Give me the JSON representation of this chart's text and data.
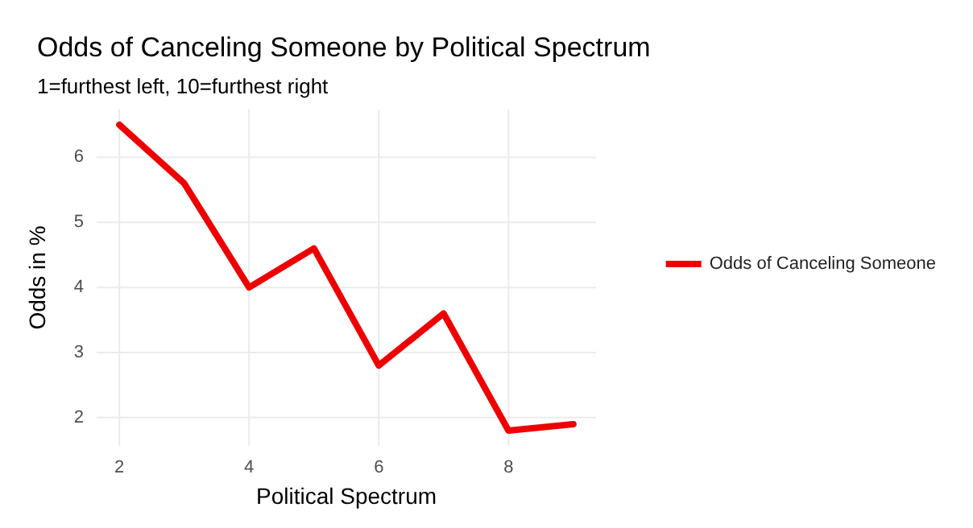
{
  "chart_data": {
    "type": "line",
    "title": "Odds of Canceling Someone by Political Spectrum",
    "subtitle": "1=furthest left, 10=furthest right",
    "xlabel": "Political Spectrum",
    "ylabel": "Odds in %",
    "x": [
      2,
      3,
      4,
      5,
      6,
      7,
      8,
      9
    ],
    "series": [
      {
        "name": "Odds of Canceling Someone",
        "color": "#ee0000",
        "values": [
          6.5,
          5.6,
          4.0,
          4.6,
          2.8,
          3.6,
          1.8,
          1.9
        ]
      }
    ],
    "xlim": [
      1.65,
      9.35
    ],
    "xticks": [
      2,
      4,
      6,
      8
    ],
    "ylim": [
      1.565,
      6.735
    ],
    "yticks": [
      2,
      3,
      4,
      5,
      6
    ],
    "grid": true,
    "legend": "right",
    "marker": "none",
    "line_style": "solid"
  }
}
